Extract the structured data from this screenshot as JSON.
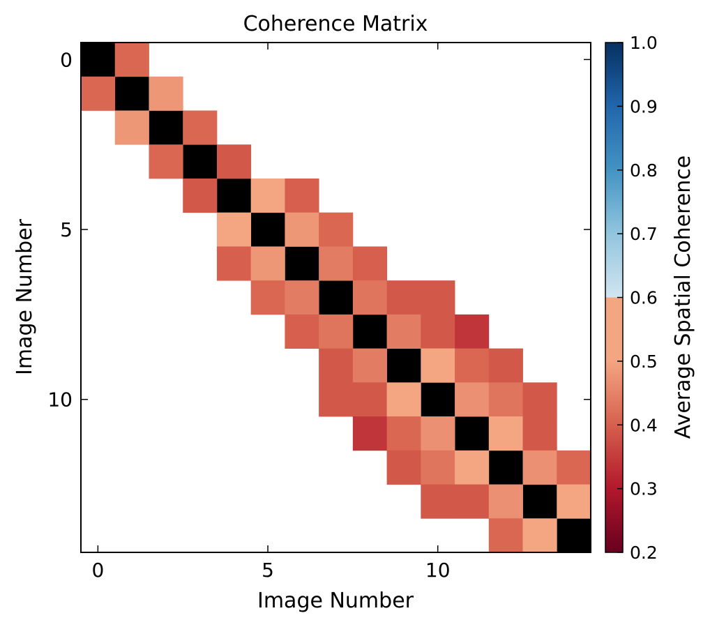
{
  "chart_data": {
    "type": "heatmap",
    "title": "Coherence Matrix",
    "xlabel": "Image Number",
    "ylabel": "Image Number",
    "x_ticks": [
      0,
      5,
      10
    ],
    "y_ticks": [
      0,
      5,
      10
    ],
    "size": 15,
    "colorbar": {
      "label": "Average Spatial Coherence",
      "range": [
        0.2,
        1.0
      ],
      "ticks": [
        "0.2",
        "0.3",
        "0.4",
        "0.5",
        "0.6",
        "0.7",
        "0.8",
        "0.9",
        "1.0"
      ],
      "colormap": "RdBu"
    },
    "diagonal_color": "#000000",
    "missing": "blank",
    "cells": [
      [
        0,
        1,
        0.41
      ],
      [
        1,
        0,
        0.41
      ],
      [
        1,
        2,
        0.48
      ],
      [
        2,
        1,
        0.48
      ],
      [
        2,
        3,
        0.41
      ],
      [
        3,
        2,
        0.41
      ],
      [
        3,
        4,
        0.39
      ],
      [
        4,
        3,
        0.39
      ],
      [
        4,
        5,
        0.51
      ],
      [
        5,
        4,
        0.51
      ],
      [
        4,
        6,
        0.4
      ],
      [
        6,
        4,
        0.4
      ],
      [
        5,
        6,
        0.48
      ],
      [
        6,
        5,
        0.48
      ],
      [
        5,
        7,
        0.41
      ],
      [
        7,
        5,
        0.41
      ],
      [
        6,
        7,
        0.44
      ],
      [
        7,
        6,
        0.44
      ],
      [
        6,
        8,
        0.4
      ],
      [
        8,
        6,
        0.4
      ],
      [
        7,
        8,
        0.43
      ],
      [
        8,
        7,
        0.43
      ],
      [
        7,
        9,
        0.39
      ],
      [
        9,
        7,
        0.39
      ],
      [
        7,
        10,
        0.39
      ],
      [
        10,
        7,
        0.39
      ],
      [
        8,
        9,
        0.44
      ],
      [
        9,
        8,
        0.44
      ],
      [
        8,
        10,
        0.39
      ],
      [
        10,
        8,
        0.39
      ],
      [
        8,
        11,
        0.34
      ],
      [
        11,
        8,
        0.34
      ],
      [
        9,
        10,
        0.53
      ],
      [
        10,
        9,
        0.53
      ],
      [
        9,
        11,
        0.41
      ],
      [
        11,
        9,
        0.41
      ],
      [
        9,
        12,
        0.39
      ],
      [
        12,
        9,
        0.39
      ],
      [
        10,
        11,
        0.47
      ],
      [
        11,
        10,
        0.47
      ],
      [
        10,
        12,
        0.43
      ],
      [
        12,
        10,
        0.43
      ],
      [
        10,
        13,
        0.39
      ],
      [
        13,
        10,
        0.39
      ],
      [
        11,
        12,
        0.55
      ],
      [
        12,
        11,
        0.55
      ],
      [
        11,
        13,
        0.39
      ],
      [
        13,
        11,
        0.39
      ],
      [
        12,
        13,
        0.47
      ],
      [
        13,
        12,
        0.47
      ],
      [
        12,
        14,
        0.41
      ],
      [
        14,
        12,
        0.41
      ],
      [
        13,
        14,
        0.55
      ],
      [
        14,
        13,
        0.55
      ]
    ]
  }
}
